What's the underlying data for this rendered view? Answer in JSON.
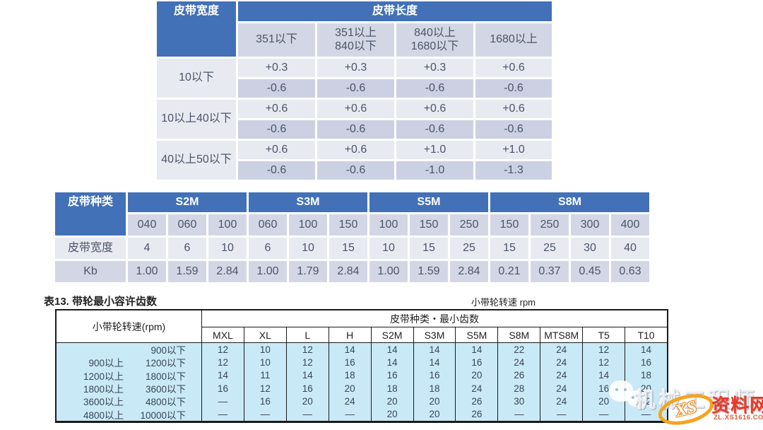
{
  "colors": {
    "header_blue": "#4271b7",
    "lavender": "#d3d7e5",
    "row_light": "#e8eaf2",
    "row_dark": "#cbd1e3",
    "table3_bg": "#c9e9f7",
    "table3_border": "#1a1a1a",
    "logo_orange": "#f5a31f",
    "logo_red": "#e63a2a"
  },
  "table1": {
    "width_header": "皮带宽度",
    "length_header": "皮带长度",
    "length_cols": [
      "351以下",
      "351以上\n840以下",
      "840以上\n1680以下",
      "1680以上"
    ],
    "row_groups": [
      {
        "label": "10以下",
        "plus": [
          "+0.3",
          "+0.3",
          "+0.3",
          "+0.6"
        ],
        "minus": [
          "-0.6",
          "-0.6",
          "-0.6",
          "-0.6"
        ]
      },
      {
        "label": "10以上40以下",
        "plus": [
          "+0.6",
          "+0.6",
          "+0.6",
          "+0.6"
        ],
        "minus": [
          "-0.6",
          "-0.6",
          "-0.6",
          "-0.6"
        ]
      },
      {
        "label": "40以上50以下",
        "plus": [
          "+0.6",
          "+0.6",
          "+1.0",
          "+1.0"
        ],
        "minus": [
          "-0.6",
          "-0.6",
          "-1.0",
          "-1.3"
        ]
      }
    ]
  },
  "table2": {
    "type_header": "皮带种类",
    "groups": [
      {
        "name": "S2M",
        "codes": [
          "040",
          "060",
          "100"
        ]
      },
      {
        "name": "S3M",
        "codes": [
          "060",
          "100",
          "150"
        ]
      },
      {
        "name": "S5M",
        "codes": [
          "100",
          "150",
          "250"
        ]
      },
      {
        "name": "S8M",
        "codes": [
          "150",
          "250",
          "300",
          "400"
        ]
      }
    ],
    "width_label": "皮带宽度",
    "widths": [
      "4",
      "6",
      "10",
      "6",
      "10",
      "15",
      "10",
      "15",
      "25",
      "15",
      "25",
      "30",
      "40"
    ],
    "kb_label": "Kb",
    "kb": [
      "1.00",
      "1.59",
      "2.84",
      "1.00",
      "1.79",
      "2.84",
      "1.00",
      "1.59",
      "2.84",
      "0.21",
      "0.37",
      "0.45",
      "0.63"
    ]
  },
  "caption": {
    "title": "表13. 带轮最小容许齿数",
    "right_note": "小带轮转速  rpm"
  },
  "table3": {
    "speed_header": "小带轮转速(rpm)",
    "teeth_header": "皮带种类・最小齿数",
    "columns": [
      "MXL",
      "XL",
      "L",
      "H",
      "S2M",
      "S3M",
      "S5M",
      "S8M",
      "MTS8M",
      "T5",
      "T10"
    ],
    "rows": [
      {
        "from": "",
        "to": "900以下",
        "values": [
          "12",
          "10",
          "12",
          "14",
          "14",
          "14",
          "14",
          "22",
          "24",
          "12",
          "14"
        ]
      },
      {
        "from": "900以上",
        "to": "1200以下",
        "values": [
          "12",
          "10",
          "12",
          "16",
          "14",
          "14",
          "16",
          "24",
          "24",
          "12",
          "16"
        ]
      },
      {
        "from": "1200以上",
        "to": "1800以下",
        "values": [
          "14",
          "11",
          "14",
          "18",
          "16",
          "16",
          "20",
          "26",
          "24",
          "14",
          "18"
        ]
      },
      {
        "from": "1800以上",
        "to": "3600以下",
        "values": [
          "16",
          "12",
          "16",
          "20",
          "18",
          "18",
          "24",
          "28",
          "24",
          "16",
          "20"
        ]
      },
      {
        "from": "3600以上",
        "to": "4800以下",
        "values": [
          "—",
          "16",
          "20",
          "24",
          "20",
          "20",
          "26",
          "30",
          "24",
          "20",
          "22"
        ]
      },
      {
        "from": "4800以上",
        "to": "10000以下",
        "values": [
          "—",
          "—",
          "—",
          "—",
          "20",
          "20",
          "26",
          "—",
          "—",
          "—",
          "—"
        ]
      }
    ]
  },
  "watermark": {
    "wechat_icon": "wechat-chat-bubbles",
    "text": "机械工程师",
    "logo_xs": "XS",
    "logo_site": "资料网",
    "logo_url": "ZL.XS1616.COM"
  }
}
